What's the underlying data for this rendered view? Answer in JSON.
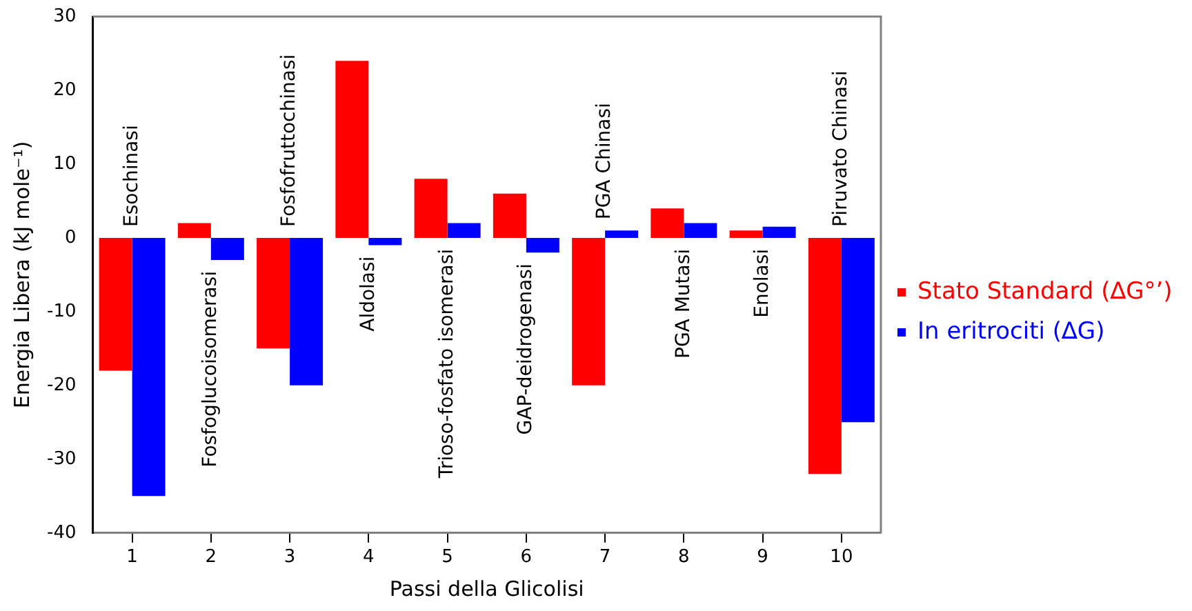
{
  "chart_data": {
    "type": "bar",
    "xlabel": "Passi della Glicolisi",
    "ylabel": "Energia Libera (kJ mole⁻¹)",
    "categories": [
      "1",
      "2",
      "3",
      "4",
      "5",
      "6",
      "7",
      "8",
      "9",
      "10"
    ],
    "series": [
      {
        "name": "Stato Standard (∆G°’)",
        "color": "#ff0000",
        "values": [
          -18,
          2,
          -15,
          24,
          8,
          6,
          -20,
          4,
          1,
          -32
        ]
      },
      {
        "name": "In eritrociti (∆G)",
        "color": "#0000ff",
        "values": [
          -35,
          -3,
          -20,
          -1,
          2,
          -2,
          1,
          2,
          1.5,
          -25
        ]
      }
    ],
    "ylim": [
      -40,
      30
    ],
    "yticks": [
      -40,
      -30,
      -20,
      -10,
      0,
      10,
      20,
      30
    ],
    "grid": false,
    "legend": "right",
    "annotations": [
      "Esochinasi",
      "Fosfoglucoisomerasi",
      "Fosfofruttochinasi",
      "Aldolasi",
      "Trioso-fosfato isomerasi",
      "GAP-deidrogenasi",
      "PGA Chinasi",
      "PGA Mutasi",
      "Enolasi",
      "Piruvato Chinasi"
    ]
  }
}
